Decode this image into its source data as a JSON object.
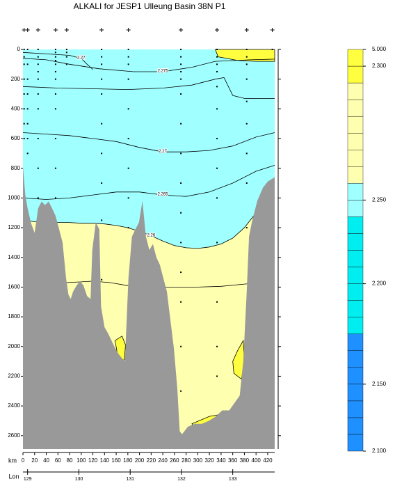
{
  "chart_data": {
    "type": "section",
    "title": "ALKALI for JESP1 Ulleung Basin 38N P1",
    "xlabel": "km",
    "x2label": "Lon",
    "xlim": [
      0,
      432
    ],
    "ylim": [
      0,
      2690
    ],
    "x2lim": [
      128.909,
      133.818
    ],
    "xticks": [
      0,
      20,
      40,
      60,
      80,
      100,
      120,
      140,
      160,
      180,
      200,
      220,
      240,
      260,
      280,
      300,
      320,
      340,
      360,
      380,
      400,
      420
    ],
    "yticks": [
      0,
      200,
      400,
      600,
      800,
      1000,
      1200,
      1400,
      1600,
      1800,
      2000,
      2200,
      2400,
      2600
    ],
    "x2ticks": [
      129,
      130,
      131,
      132,
      133
    ],
    "bathymetry": {
      "color": "#999999",
      "x": [
        0,
        4,
        8,
        14,
        20,
        26,
        32,
        38,
        44,
        50,
        56,
        62,
        68,
        74,
        78,
        82,
        86,
        92,
        98,
        104,
        110,
        116,
        119,
        125,
        131,
        134,
        140,
        146,
        152,
        158,
        164,
        170,
        175,
        181,
        187,
        193,
        199,
        205,
        211,
        217,
        223,
        229,
        235,
        241,
        247,
        253,
        259,
        265,
        269,
        273,
        283,
        295,
        307,
        319,
        331,
        342,
        354,
        372,
        378,
        384,
        388,
        393,
        402,
        412,
        420,
        432
      ],
      "depth": [
        790,
        980,
        1070,
        1170,
        1235,
        1070,
        1024,
        1048,
        1024,
        1070,
        1120,
        1210,
        1300,
        1540,
        1650,
        1680,
        1630,
        1590,
        1560,
        1590,
        1660,
        1680,
        1350,
        1165,
        1210,
        1730,
        1870,
        1910,
        1960,
        2010,
        2050,
        2080,
        2100,
        1540,
        1260,
        1210,
        1165,
        1020,
        1260,
        1350,
        1310,
        1400,
        1450,
        1540,
        1630,
        1820,
        2010,
        2290,
        2570,
        2590,
        2540,
        2520,
        2520,
        2500,
        2470,
        2430,
        2430,
        2330,
        2100,
        1630,
        1260,
        1160,
        1020,
        930,
        890,
        860
      ]
    },
    "contours": [
      {
        "level": 2.26,
        "label": "2.26",
        "fill": "below",
        "x": [
          0,
          20,
          40,
          60,
          80,
          100,
          120,
          140,
          160,
          180,
          200,
          220,
          240,
          260,
          280,
          300,
          320,
          340,
          360,
          380,
          400,
          432
        ],
        "depth": [
          1150,
          1160,
          1160,
          1165,
          1165,
          1170,
          1170,
          1175,
          1185,
          1200,
          1225,
          1255,
          1290,
          1320,
          1335,
          1340,
          1330,
          1310,
          1270,
          1200,
          1100,
          1000
        ]
      },
      {
        "level": 2.29,
        "fill": "inside",
        "x": [
          158,
          170,
          176,
          174,
          164
        ],
        "depth": [
          1960,
          1930,
          1990,
          2090,
          2090
        ]
      },
      {
        "level": 2.29,
        "fill": "inside",
        "x": [
          378,
          368,
          360,
          362,
          375,
          380
        ],
        "depth": [
          1960,
          2030,
          2100,
          2180,
          2220,
          2100
        ]
      },
      {
        "level": 2.29,
        "fill": "inside",
        "x": [
          290,
          320,
          350,
          370,
          374,
          372,
          330,
          295
        ],
        "depth": [
          2520,
          2470,
          2450,
          2400,
          2330,
          2500,
          2540,
          2560
        ]
      },
      {
        "level": 2.29,
        "fill": "inside",
        "x": [
          330,
          335,
          370,
          400,
          432,
          432
        ],
        "depth": [
          0,
          50,
          75,
          80,
          80,
          0
        ]
      },
      {
        "level": 2.26,
        "label": "2.26",
        "x": [
          74,
          100,
          120,
          150,
          180,
          220,
          260,
          300,
          340,
          380,
          432
        ],
        "depth": [
          1570,
          1565,
          1560,
          1570,
          1590,
          1600,
          1600,
          1600,
          1595,
          1580,
          1560
        ]
      },
      {
        "level": 2.265,
        "label": "2.265",
        "x": [
          0,
          40,
          80,
          120,
          160,
          200,
          240,
          280,
          320,
          360,
          400,
          432
        ],
        "depth": [
          1000,
          1010,
          1000,
          980,
          960,
          960,
          980,
          990,
          960,
          900,
          820,
          780
        ]
      },
      {
        "level": 2.27,
        "label": "2.27",
        "x": [
          0,
          40,
          80,
          120,
          160,
          200,
          240,
          280,
          320,
          360,
          400,
          432
        ],
        "depth": [
          560,
          570,
          580,
          600,
          620,
          660,
          690,
          690,
          680,
          650,
          590,
          560
        ]
      },
      {
        "level": 2.27,
        "x": [
          0,
          60,
          120,
          180,
          240,
          290,
          330,
          345,
          360,
          380,
          432
        ],
        "depth": [
          250,
          260,
          265,
          270,
          260,
          240,
          200,
          190,
          310,
          330,
          330
        ]
      },
      {
        "level": 2.275,
        "label": "2.275",
        "x": [
          0,
          40,
          80,
          130,
          190,
          240,
          290,
          330,
          390,
          432
        ],
        "depth": [
          60,
          70,
          100,
          130,
          150,
          150,
          120,
          80,
          70,
          65
        ]
      },
      {
        "level": 2.27,
        "label": "2.27",
        "x": [
          0,
          40,
          80,
          100,
          110,
          120
        ],
        "depth": [
          20,
          30,
          40,
          60,
          100,
          135
        ]
      }
    ],
    "samples": [
      {
        "x": 2,
        "depths": [
          0,
          50,
          100,
          200,
          300,
          400,
          500,
          600
        ]
      },
      {
        "x": 8,
        "depths": [
          0,
          100,
          200,
          300,
          400,
          500,
          600,
          700
        ]
      },
      {
        "x": 26,
        "depths": [
          0,
          50,
          100,
          150,
          200,
          300,
          400,
          600,
          800,
          1000
        ]
      },
      {
        "x": 56,
        "depths": [
          0,
          20,
          50,
          75,
          100,
          150,
          200,
          300,
          400,
          600,
          800,
          1000,
          1400
        ]
      },
      {
        "x": 75,
        "depths": [
          0,
          20,
          50,
          100
        ]
      },
      {
        "x": 135,
        "depths": [
          0,
          50,
          100,
          200,
          300,
          500,
          700,
          900,
          1150,
          1550
        ]
      },
      {
        "x": 181,
        "depths": [
          0,
          50,
          100,
          200,
          400,
          600,
          800,
          1000,
          1200
        ]
      },
      {
        "x": 271,
        "depths": [
          0,
          50,
          100,
          150,
          200,
          300,
          500,
          700,
          900,
          1100,
          1300,
          1500,
          1700,
          2000,
          2300
        ]
      },
      {
        "x": 333,
        "depths": [
          0,
          50,
          100,
          150,
          250,
          400,
          600,
          800,
          1000,
          1300,
          1700,
          2000,
          2200
        ]
      },
      {
        "x": 384,
        "depths": [
          0,
          50,
          100,
          200,
          350,
          500,
          700,
          900,
          1200
        ]
      },
      {
        "x": 428,
        "depths": [
          0
        ]
      }
    ],
    "colorbar": {
      "levels": [
        2.1,
        2.1125,
        2.125,
        2.1375,
        2.15,
        2.1583,
        2.1667,
        2.175,
        2.1833,
        2.1917,
        2.2,
        2.21,
        2.22,
        2.23,
        2.24,
        2.25,
        2.26,
        2.265,
        2.27,
        2.275,
        2.28,
        2.285,
        2.29,
        2.3,
        5.0
      ],
      "colors": [
        "#1e90ff",
        "#1e90ff",
        "#1e90ff",
        "#1e90ff",
        "#1e90ff",
        "#1e90ff",
        "#1e90ff",
        "#00eef0",
        "#00eef0",
        "#00eef0",
        "#00eef0",
        "#00eef0",
        "#00eef0",
        "#00eef0",
        "#a0ffff",
        "#a0ffff",
        "#ffffb0",
        "#ffffb0",
        "#ffffb0",
        "#ffffb0",
        "#ffffb0",
        "#ffffb0",
        "#ffff40",
        "#ffff40"
      ],
      "ticks": [
        {
          "value": 2.1,
          "label": "2.100"
        },
        {
          "value": 2.15,
          "label": "2.150"
        },
        {
          "value": 2.2,
          "label": "2.200"
        },
        {
          "value": 2.25,
          "label": "2.250"
        },
        {
          "value": 2.3,
          "label": "2.300"
        },
        {
          "value": 5.0,
          "label": "5.000"
        }
      ]
    }
  }
}
